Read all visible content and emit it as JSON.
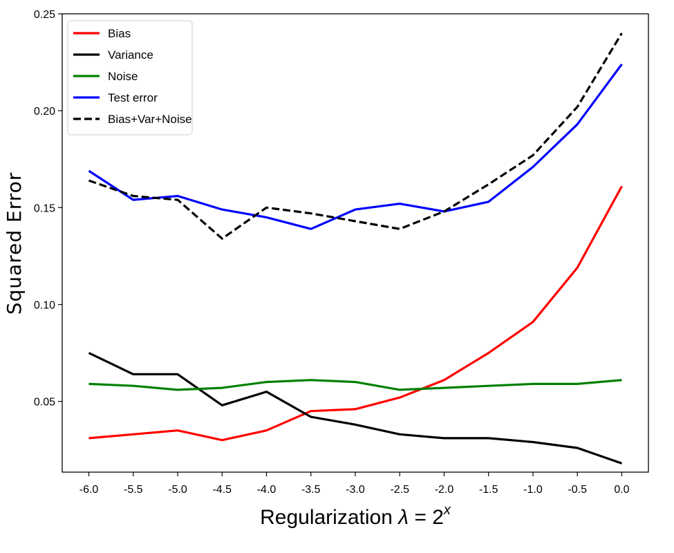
{
  "chart_data": {
    "type": "line",
    "title": "",
    "xlabel_prefix": "Regularization ",
    "xlabel_lambda": "λ",
    "xlabel_eq": " = 2",
    "xlabel_sup": "x",
    "ylabel": "Squared Error",
    "x": [
      -6.0,
      -5.5,
      -5.0,
      -4.5,
      -4.0,
      -3.5,
      -3.0,
      -2.5,
      -2.0,
      -1.5,
      -1.0,
      -0.5,
      0.0
    ],
    "xtick_labels": [
      "-6.0",
      "-5.5",
      "-5.0",
      "-4.5",
      "-4.0",
      "-3.5",
      "-3.0",
      "-2.5",
      "-2.0",
      "-1.5",
      "-1.0",
      "-0.5",
      "0.0"
    ],
    "yticks": [
      0.05,
      0.1,
      0.15,
      0.2,
      0.25
    ],
    "ytick_labels": [
      "0.05",
      "0.10",
      "0.15",
      "0.20",
      "0.25"
    ],
    "xlim": [
      -6.3,
      0.3
    ],
    "ylim": [
      0.0135,
      0.25
    ],
    "grid": false,
    "legend_position": "top-left",
    "series": [
      {
        "name": "Bias",
        "color": "#ff0000",
        "dash": "solid",
        "values": [
          0.031,
          0.033,
          0.035,
          0.03,
          0.035,
          0.045,
          0.046,
          0.052,
          0.061,
          0.075,
          0.091,
          0.119,
          0.161
        ]
      },
      {
        "name": "Variance",
        "color": "#000000",
        "dash": "solid",
        "values": [
          0.075,
          0.064,
          0.064,
          0.048,
          0.055,
          0.042,
          0.038,
          0.033,
          0.031,
          0.031,
          0.029,
          0.026,
          0.018
        ]
      },
      {
        "name": "Noise",
        "color": "#008000",
        "dash": "solid",
        "values": [
          0.059,
          0.058,
          0.056,
          0.057,
          0.06,
          0.061,
          0.06,
          0.056,
          0.057,
          0.058,
          0.059,
          0.059,
          0.061
        ]
      },
      {
        "name": "Test error",
        "color": "#0000ff",
        "dash": "solid",
        "values": [
          0.169,
          0.154,
          0.156,
          0.149,
          0.145,
          0.139,
          0.149,
          0.152,
          0.148,
          0.153,
          0.171,
          0.193,
          0.224
        ]
      },
      {
        "name": "Bias+Var+Noise",
        "color": "#000000",
        "dash": "dashed",
        "values": [
          0.164,
          0.156,
          0.154,
          0.134,
          0.15,
          0.147,
          0.143,
          0.139,
          0.148,
          0.162,
          0.177,
          0.202,
          0.24
        ]
      }
    ]
  }
}
